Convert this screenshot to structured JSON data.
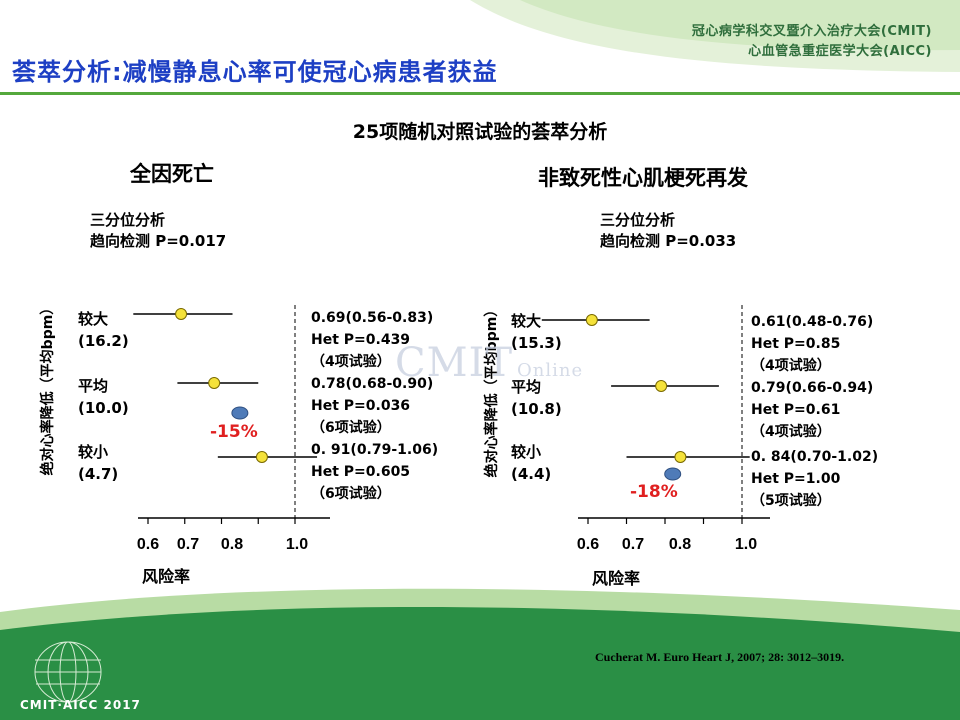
{
  "header": {
    "org_line1": "冠心病学科交叉暨介入治疗大会(CMIT)",
    "org_line2": "心血管急重症医学大会(AICC)",
    "title": "荟萃分析:减慢静息心率可使冠心病患者获益"
  },
  "subtitle": "25项随机对照试验的荟萃分析",
  "watermark": {
    "text": "CMIT",
    "small": "Online"
  },
  "citation": "Cucherat  M. Euro  Heart J, 2007; 28: 3012–3019.",
  "logo_text": "CMIT·AICC 2017",
  "colors": {
    "accent_green": "#54a83c",
    "title_blue": "#1d3fc4",
    "estimate_yellow": "#f5e23a",
    "pooled_blue": "#4f7bb8",
    "reduction_red": "#e02020"
  },
  "panels": [
    {
      "heading": "全因死亡",
      "tertile_line1": "三分位分析",
      "tertile_line2": "趋向检测 P=0.017",
      "y_label": "绝对心率降低（平均bpm）",
      "x_label": "风险率",
      "reduction_label": "-15%",
      "groups": [
        {
          "name": "较大",
          "hr_reduction": "(16.2)",
          "ci_text": "0.69(0.56-0.83)",
          "het": "Het P=0.439",
          "trials": "（4项试验）"
        },
        {
          "name": "平均",
          "hr_reduction": "(10.0)",
          "ci_text": "0.78(0.68-0.90)",
          "het": "Het P=0.036",
          "trials": "（6项试验）"
        },
        {
          "name": "较小",
          "hr_reduction": "(4.7)",
          "ci_text": "0. 91(0.79-1.06)",
          "het": "Het P=0.605",
          "trials": "（6项试验）"
        }
      ]
    },
    {
      "heading": "非致死性心肌梗死再发",
      "tertile_line1": "三分位分析",
      "tertile_line2": "趋向检测 P=0.033",
      "y_label": "绝对心率降低（平均bpm）",
      "x_label": "风险率",
      "reduction_label": "-18%",
      "groups": [
        {
          "name": "较大",
          "hr_reduction": "(15.3)",
          "ci_text": "0.61(0.48-0.76)",
          "het": "Het P=0.85",
          "trials": "（4项试验）"
        },
        {
          "name": "平均",
          "hr_reduction": "(10.8)",
          "ci_text": "0.79(0.66-0.94)",
          "het": "Het P=0.61",
          "trials": "（4项试验）"
        },
        {
          "name": "较小",
          "hr_reduction": "(4.4)",
          "ci_text": "0. 84(0.70-1.02)",
          "het": "Het P=1.00",
          "trials": "（5项试验）"
        }
      ]
    }
  ],
  "chart_data": [
    {
      "type": "forest",
      "title": "全因死亡",
      "xlabel": "风险率",
      "ylabel": "绝对心率降低（平均bpm）",
      "xlim": [
        0.6,
        1.0
      ],
      "xticks": [
        "0.6",
        "0.7",
        "0.8",
        "1.0"
      ],
      "reference_line": 1.0,
      "categories": [
        "较大 (16.2)",
        "平均 (10.0)",
        "较小 (4.7)"
      ],
      "estimates": [
        0.69,
        0.78,
        0.91
      ],
      "ci_low": [
        0.56,
        0.68,
        0.79
      ],
      "ci_high": [
        0.83,
        0.9,
        1.06
      ],
      "pooled": 0.85,
      "pooled_label": "-15%",
      "trend_p": 0.017
    },
    {
      "type": "forest",
      "title": "非致死性心肌梗死再发",
      "xlabel": "风险率",
      "ylabel": "绝对心率降低（平均bpm）",
      "xlim": [
        0.6,
        1.0
      ],
      "xticks": [
        "0.6",
        "0.7",
        "0.8",
        "1.0"
      ],
      "reference_line": 1.0,
      "categories": [
        "较大 (15.3)",
        "平均 (10.8)",
        "较小 (4.4)"
      ],
      "estimates": [
        0.61,
        0.79,
        0.84
      ],
      "ci_low": [
        0.48,
        0.66,
        0.7
      ],
      "ci_high": [
        0.76,
        0.94,
        1.02
      ],
      "pooled": 0.82,
      "pooled_label": "-18%",
      "trend_p": 0.033
    }
  ]
}
